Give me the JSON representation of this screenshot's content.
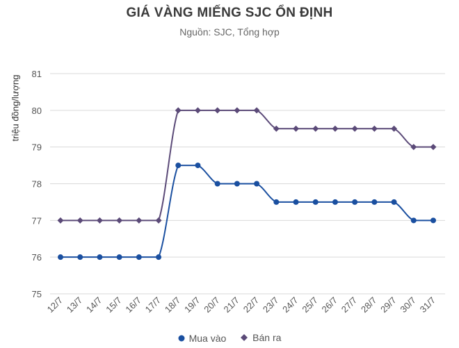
{
  "chart_data": {
    "type": "line",
    "title": "GIÁ VÀNG MIẾNG SJC ỔN ĐỊNH",
    "subtitle": "Nguồn: SJC, Tổng hợp",
    "ylabel": "triệu đồng/lượng",
    "xlabel": "",
    "ylim": [
      75,
      81
    ],
    "yticks": [
      75,
      76,
      77,
      78,
      79,
      80,
      81
    ],
    "categories": [
      "12/7",
      "13/7",
      "14/7",
      "15/7",
      "16/7",
      "17/7",
      "18/7",
      "19/7",
      "20/7",
      "21/7",
      "22/7",
      "23/7",
      "24/7",
      "25/7",
      "26/7",
      "27/7",
      "28/7",
      "29/7",
      "30/7",
      "31/7"
    ],
    "series": [
      {
        "name": "Mua vào",
        "color": "#1a4fa0",
        "marker": "circle",
        "values": [
          76,
          76,
          76,
          76,
          76,
          76,
          78.5,
          78.5,
          78,
          78,
          78,
          77.5,
          77.5,
          77.5,
          77.5,
          77.5,
          77.5,
          77.5,
          77,
          77
        ]
      },
      {
        "name": "Bán ra",
        "color": "#5b4a78",
        "marker": "diamond",
        "values": [
          77,
          77,
          77,
          77,
          77,
          77,
          80,
          80,
          80,
          80,
          80,
          79.5,
          79.5,
          79.5,
          79.5,
          79.5,
          79.5,
          79.5,
          79,
          79
        ]
      }
    ],
    "grid": true,
    "legend": "bottom"
  }
}
